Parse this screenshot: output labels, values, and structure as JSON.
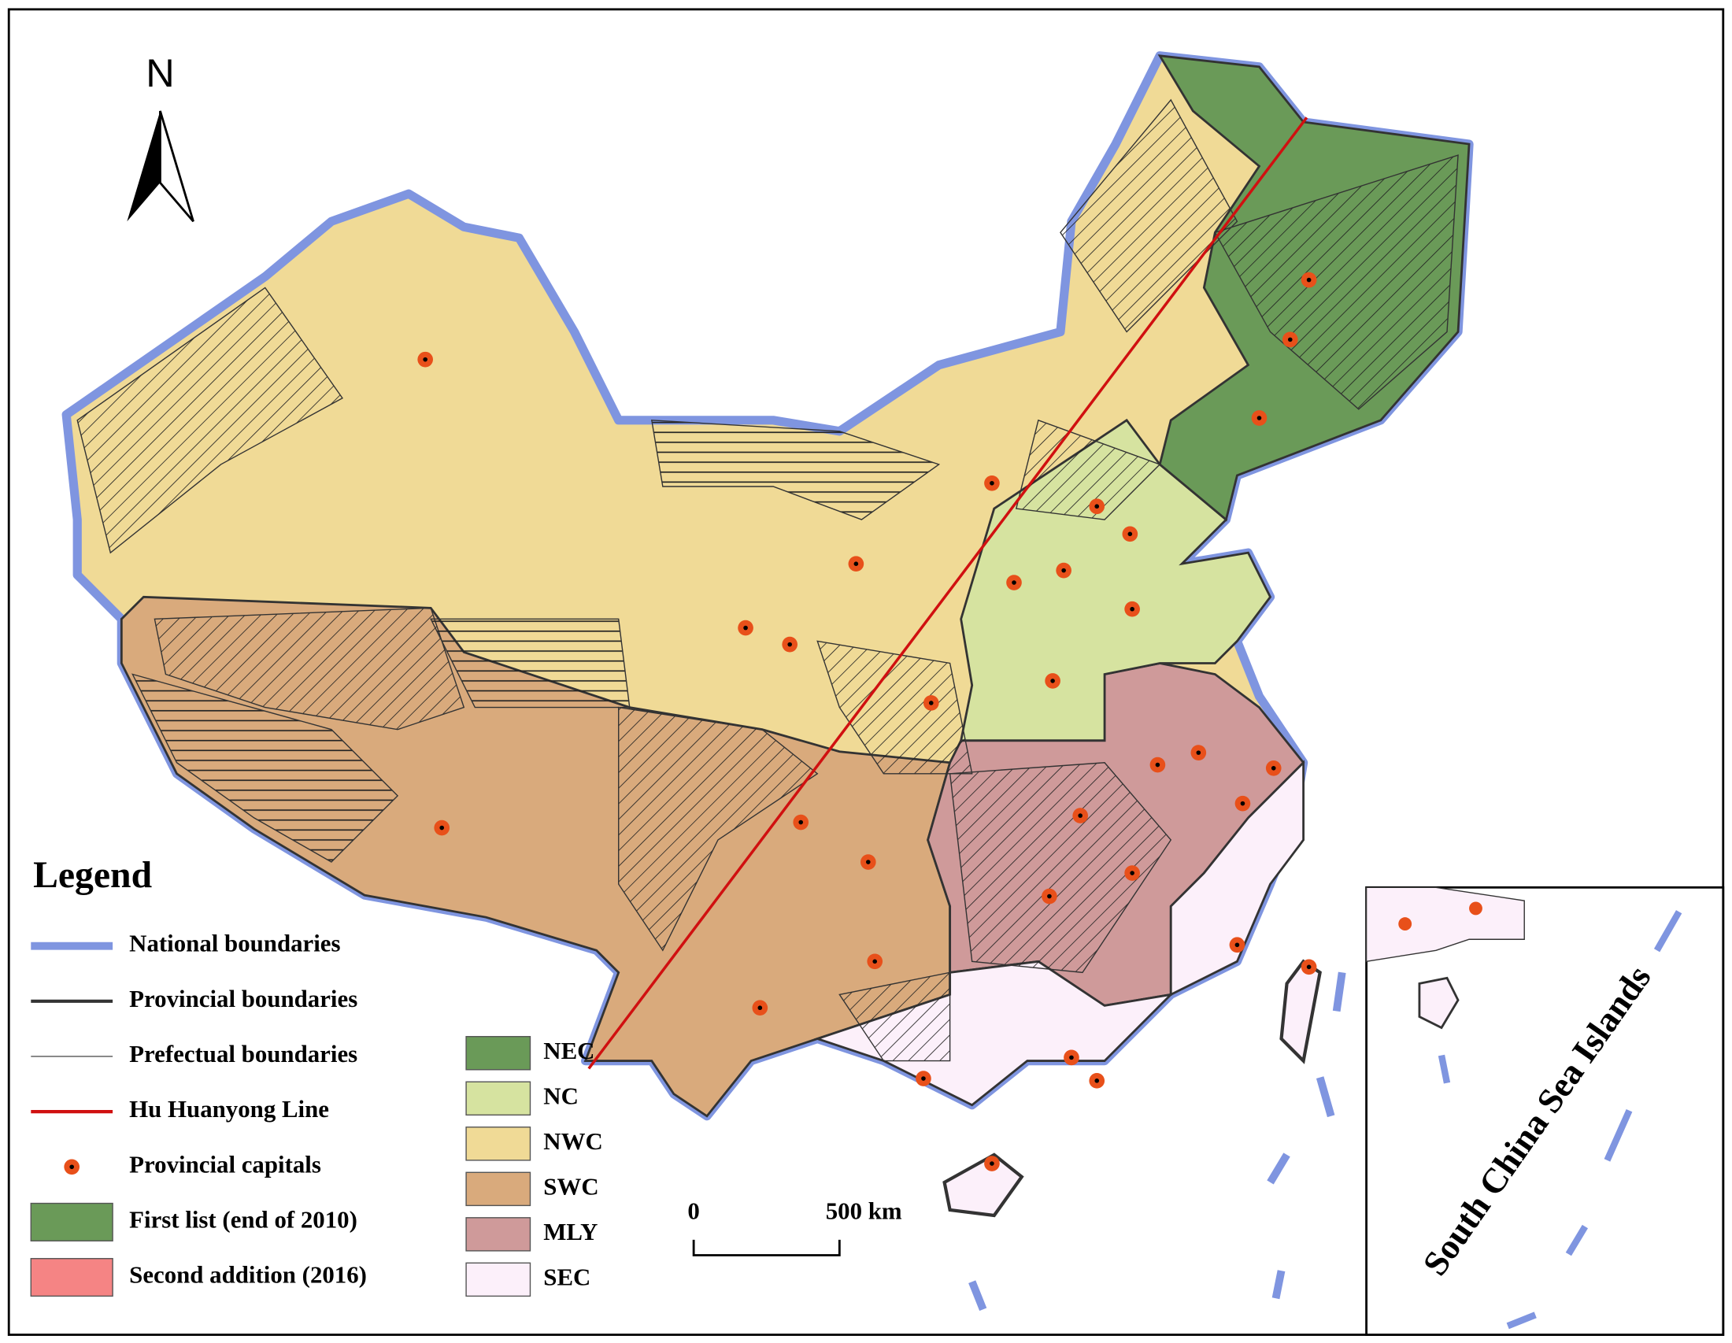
{
  "north": "N",
  "legend": {
    "title": "Legend",
    "items": [
      {
        "label": "National boundaries",
        "color": "#7f95e0"
      },
      {
        "label": "Provincial boundaries",
        "color": "#333333"
      },
      {
        "label": "Prefectual boundaries",
        "color": "#555555"
      },
      {
        "label": "Hu Huanyong Line",
        "color": "#d01010"
      },
      {
        "label": "Provincial capitals",
        "color": "#e8501a"
      },
      {
        "label": "First list (end of 2010)",
        "color": "#6a9a58"
      },
      {
        "label": "Second addition (2016)",
        "color": "#f58484"
      }
    ],
    "regions": [
      {
        "name": "NEC",
        "color": "#6a9a58"
      },
      {
        "name": "NC",
        "color": "#d6e3a0"
      },
      {
        "name": "NWC",
        "color": "#f0da96"
      },
      {
        "name": "SWC",
        "color": "#d9aa7c"
      },
      {
        "name": "MLY",
        "color": "#cf9a9a"
      },
      {
        "name": "SEC",
        "color": "#fcf0fa"
      }
    ]
  },
  "scale": {
    "zero": "0",
    "distance": "500 km"
  },
  "inset": {
    "label": "South China Sea Islands"
  }
}
